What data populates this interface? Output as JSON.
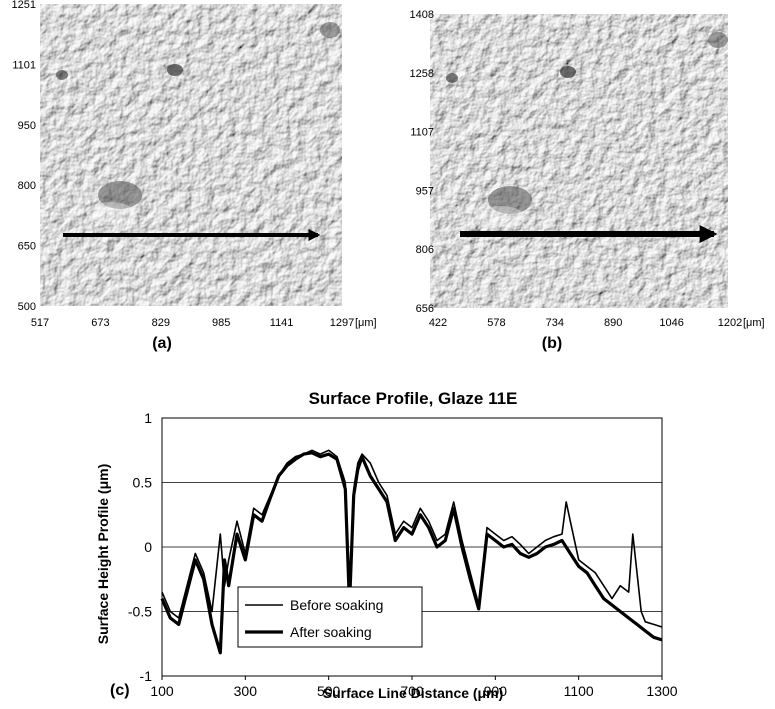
{
  "panel_a": {
    "label": "(a)",
    "y_ticks": [
      "1251",
      "1101",
      "950",
      "800",
      "650",
      "500"
    ],
    "x_ticks": [
      "517",
      "673",
      "829",
      "985",
      "1141",
      "1297"
    ],
    "x_unit": "[μm]"
  },
  "panel_b": {
    "label": "(b)",
    "y_ticks": [
      "1408",
      "1258",
      "1107",
      "957",
      "806",
      "656"
    ],
    "x_ticks": [
      "422",
      "578",
      "734",
      "890",
      "1046",
      "1202"
    ],
    "x_unit": "[μm]"
  },
  "panel_c": {
    "label": "(c)"
  },
  "chart_data": {
    "type": "line",
    "title": "Surface Profile, Glaze 11E",
    "xlabel": "Surface Line Distance (μm)",
    "ylabel": "Surface Height Profile (μm)",
    "xlim": [
      100,
      1300
    ],
    "ylim": [
      -1,
      1
    ],
    "x_ticks": [
      "100",
      "300",
      "500",
      "700",
      "900",
      "1100",
      "1300"
    ],
    "y_ticks": [
      "1",
      "0.5",
      "0",
      "-0.5",
      "-1"
    ],
    "grid": "horizontal",
    "legend_position": "bottom-left",
    "series": [
      {
        "name": "Before soaking",
        "line_weight": "thin",
        "color": "#000000",
        "x": [
          100,
          120,
          140,
          160,
          180,
          200,
          220,
          240,
          250,
          260,
          280,
          300,
          320,
          340,
          360,
          380,
          400,
          420,
          440,
          460,
          480,
          500,
          520,
          540,
          550,
          560,
          570,
          580,
          600,
          620,
          640,
          660,
          680,
          700,
          720,
          740,
          760,
          780,
          800,
          820,
          840,
          860,
          880,
          900,
          920,
          940,
          960,
          980,
          1000,
          1020,
          1040,
          1060,
          1070,
          1080,
          1100,
          1120,
          1140,
          1160,
          1180,
          1200,
          1220,
          1230,
          1240,
          1250,
          1260,
          1280,
          1300
        ],
        "y": [
          -0.35,
          -0.5,
          -0.55,
          -0.3,
          -0.05,
          -0.2,
          -0.5,
          0.1,
          -0.3,
          -0.1,
          0.2,
          -0.05,
          0.3,
          0.25,
          0.4,
          0.55,
          0.65,
          0.7,
          0.72,
          0.75,
          0.72,
          0.75,
          0.7,
          0.5,
          -0.45,
          0.45,
          0.65,
          0.72,
          0.65,
          0.5,
          0.4,
          0.1,
          0.2,
          0.15,
          0.3,
          0.2,
          0.05,
          0.1,
          0.35,
          0.05,
          -0.2,
          -0.45,
          0.15,
          0.1,
          0.05,
          0.08,
          0.02,
          -0.05,
          0.0,
          0.05,
          0.08,
          0.1,
          0.35,
          0.2,
          -0.1,
          -0.15,
          -0.2,
          -0.3,
          -0.4,
          -0.3,
          -0.35,
          0.1,
          -0.2,
          -0.5,
          -0.58,
          -0.6,
          -0.62
        ]
      },
      {
        "name": "After soaking",
        "line_weight": "thick",
        "color": "#000000",
        "x": [
          100,
          120,
          140,
          160,
          180,
          200,
          220,
          240,
          250,
          260,
          280,
          300,
          320,
          340,
          360,
          380,
          400,
          420,
          440,
          460,
          480,
          500,
          520,
          540,
          550,
          560,
          570,
          580,
          600,
          620,
          640,
          660,
          680,
          700,
          720,
          740,
          760,
          780,
          800,
          820,
          840,
          860,
          880,
          900,
          920,
          940,
          960,
          980,
          1000,
          1020,
          1040,
          1060,
          1080,
          1100,
          1120,
          1140,
          1160,
          1180,
          1200,
          1220,
          1240,
          1260,
          1280,
          1300
        ],
        "y": [
          -0.4,
          -0.55,
          -0.6,
          -0.35,
          -0.1,
          -0.25,
          -0.6,
          -0.82,
          -0.1,
          -0.3,
          0.1,
          -0.1,
          0.25,
          0.2,
          0.38,
          0.55,
          0.63,
          0.68,
          0.72,
          0.73,
          0.7,
          0.72,
          0.68,
          0.45,
          -0.45,
          0.4,
          0.6,
          0.7,
          0.55,
          0.45,
          0.35,
          0.05,
          0.15,
          0.1,
          0.25,
          0.15,
          0.0,
          0.05,
          0.3,
          0.0,
          -0.25,
          -0.48,
          0.1,
          0.05,
          0.0,
          0.02,
          -0.05,
          -0.08,
          -0.05,
          0.0,
          0.02,
          0.05,
          -0.05,
          -0.15,
          -0.2,
          -0.3,
          -0.4,
          -0.45,
          -0.5,
          -0.55,
          -0.6,
          -0.65,
          -0.7,
          -0.72
        ]
      }
    ]
  }
}
